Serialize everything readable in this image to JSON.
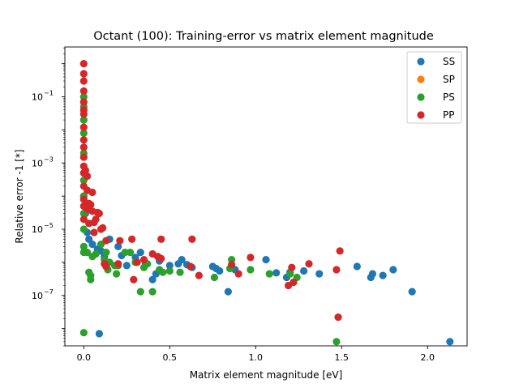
{
  "chart_data": {
    "type": "scatter",
    "title": "Octant (100): Training-error vs matrix element magnitude",
    "xlabel": "Matrix element magnitude [eV]",
    "ylabel": "Relative error -1 [*]",
    "xlim": [
      -0.11,
      2.23
    ],
    "ylim": [
      3e-09,
      3.2
    ],
    "yscale": "log",
    "x_ticks": [
      0.0,
      0.5,
      1.0,
      1.5,
      2.0
    ],
    "x_tick_labels": [
      "0.0",
      "0.5",
      "1.0",
      "1.5",
      "2.0"
    ],
    "y_ticks": [
      1e-07,
      1e-05,
      0.001,
      0.1
    ],
    "y_tick_labels": [
      {
        "base": "10",
        "exp": "−7"
      },
      {
        "base": "10",
        "exp": "−5"
      },
      {
        "base": "10",
        "exp": "−3"
      },
      {
        "base": "10",
        "exp": "−1"
      }
    ],
    "grid": false,
    "legend_position": "top-right",
    "series": [
      {
        "name": "SS",
        "color": "#1f77b4",
        "points": [
          [
            0.0,
            0.0001
          ],
          [
            0.01,
            3e-05
          ],
          [
            0.02,
            8e-06
          ],
          [
            0.03,
            5e-06
          ],
          [
            0.05,
            3.5e-06
          ],
          [
            0.08,
            2.5e-06
          ],
          [
            0.1,
            2.2e-06
          ],
          [
            0.12,
            1.5e-06
          ],
          [
            0.15,
            5e-06
          ],
          [
            0.2,
            3e-06
          ],
          [
            0.22,
            1.6e-06
          ],
          [
            0.25,
            8e-07
          ],
          [
            0.3,
            1.4e-06
          ],
          [
            0.33,
            2e-06
          ],
          [
            0.36,
            9e-07
          ],
          [
            0.4,
            3e-07
          ],
          [
            0.42,
            4.5e-07
          ],
          [
            0.44,
            1.1e-06
          ],
          [
            0.5,
            8e-07
          ],
          [
            0.55,
            9e-07
          ],
          [
            0.57,
            1.2e-06
          ],
          [
            0.6,
            8.5e-07
          ],
          [
            0.63,
            7e-07
          ],
          [
            0.75,
            7.5e-07
          ],
          [
            0.77,
            6.5e-07
          ],
          [
            0.79,
            5.5e-07
          ],
          [
            0.84,
            1.3e-07
          ],
          [
            0.88,
            6e-07
          ],
          [
            1.06,
            1.2e-06
          ],
          [
            1.12,
            4.8e-07
          ],
          [
            1.18,
            3.5e-07
          ],
          [
            1.2,
            5e-07
          ],
          [
            1.28,
            5.5e-07
          ],
          [
            1.37,
            4.5e-07
          ],
          [
            1.59,
            7.5e-07
          ],
          [
            1.67,
            3.5e-07
          ],
          [
            1.68,
            4.5e-07
          ],
          [
            1.74,
            4e-07
          ],
          [
            1.8,
            6e-07
          ],
          [
            1.91,
            1.3e-07
          ],
          [
            0.09,
            7e-09
          ],
          [
            2.13,
            4e-09
          ]
        ]
      },
      {
        "name": "SP",
        "color": "#ff7f0e",
        "points": []
      },
      {
        "name": "PS",
        "color": "#2ca02c",
        "points": [
          [
            0.0,
            7.5e-09
          ],
          [
            0.0,
            0.1
          ],
          [
            0.0,
            0.05
          ],
          [
            0.0,
            0.02
          ],
          [
            0.0,
            0.008
          ],
          [
            0.0,
            0.002
          ],
          [
            0.0,
            0.0003
          ],
          [
            0.0,
            0.0001
          ],
          [
            0.0,
            3e-05
          ],
          [
            0.0,
            1e-05
          ],
          [
            0.0,
            3e-06
          ],
          [
            0.0,
            2e-06
          ],
          [
            0.02,
            2e-06
          ],
          [
            0.03,
            5e-07
          ],
          [
            0.04,
            4e-07
          ],
          [
            0.04,
            3e-07
          ],
          [
            0.05,
            1.5e-06
          ],
          [
            0.07,
            1.8e-06
          ],
          [
            0.1,
            3.5e-06
          ],
          [
            0.12,
            1.2e-06
          ],
          [
            0.13,
            2e-06
          ],
          [
            0.14,
            6e-07
          ],
          [
            0.15,
            1e-06
          ],
          [
            0.18,
            8e-07
          ],
          [
            0.19,
            4.5e-07
          ],
          [
            0.2,
            8e-07
          ],
          [
            0.24,
            2e-06
          ],
          [
            0.27,
            2e-06
          ],
          [
            0.3,
            1e-06
          ],
          [
            0.33,
            1.3e-07
          ],
          [
            0.35,
            7e-07
          ],
          [
            0.37,
            9e-07
          ],
          [
            0.4,
            1.3e-07
          ],
          [
            0.44,
            6e-07
          ],
          [
            0.46,
            5e-07
          ],
          [
            0.5,
            5.5e-07
          ],
          [
            0.56,
            5e-07
          ],
          [
            0.76,
            3.5e-07
          ],
          [
            0.85,
            6.5e-07
          ],
          [
            0.86,
            1.2e-06
          ],
          [
            0.97,
            6e-07
          ],
          [
            1.08,
            4.5e-07
          ],
          [
            1.2,
            4.5e-07
          ],
          [
            1.24,
            3.5e-07
          ],
          [
            1.47,
            4e-09
          ]
        ]
      },
      {
        "name": "PP",
        "color": "#d62728",
        "points": [
          [
            0.0,
            1.0
          ],
          [
            0.0,
            0.5
          ],
          [
            0.0,
            0.3
          ],
          [
            0.0,
            0.15
          ],
          [
            0.0,
            0.07
          ],
          [
            0.0,
            0.04
          ],
          [
            0.0,
            0.03
          ],
          [
            0.0,
            0.012
          ],
          [
            0.0,
            0.005
          ],
          [
            0.0,
            0.003
          ],
          [
            0.0,
            0.0015
          ],
          [
            0.0,
            0.0008
          ],
          [
            0.0,
            0.0005
          ],
          [
            0.0,
            0.0002
          ],
          [
            0.0,
            8e-05
          ],
          [
            0.0,
            5e-05
          ],
          [
            0.0,
            2e-05
          ],
          [
            0.01,
            0.0006
          ],
          [
            0.02,
            0.0004
          ],
          [
            0.02,
            0.00015
          ],
          [
            0.02,
            4e-05
          ],
          [
            0.03,
            6e-05
          ],
          [
            0.03,
            1.5e-05
          ],
          [
            0.04,
            5.5e-05
          ],
          [
            0.05,
            3.5e-05
          ],
          [
            0.05,
            0.00013
          ],
          [
            0.06,
            1.6e-05
          ],
          [
            0.06,
            8e-06
          ],
          [
            0.07,
            2e-05
          ],
          [
            0.08,
            3.2e-05
          ],
          [
            0.09,
            3e-05
          ],
          [
            0.1,
            1e-05
          ],
          [
            0.11,
            1.1e-05
          ],
          [
            0.13,
            4.5e-06
          ],
          [
            0.12,
            9e-07
          ],
          [
            0.13,
            7.5e-07
          ],
          [
            0.2,
            9e-07
          ],
          [
            0.21,
            4.5e-06
          ],
          [
            0.28,
            5e-06
          ],
          [
            0.29,
            3e-07
          ],
          [
            0.31,
            1e-06
          ],
          [
            0.35,
            1.2e-06
          ],
          [
            0.4,
            1.8e-06
          ],
          [
            0.43,
            1.5e-06
          ],
          [
            0.45,
            1.3e-06
          ],
          [
            0.45,
            5e-06
          ],
          [
            0.62,
            7.5e-07
          ],
          [
            0.63,
            5e-06
          ],
          [
            0.67,
            4e-07
          ],
          [
            0.86,
            8.5e-07
          ],
          [
            0.9,
            4.5e-07
          ],
          [
            0.97,
            1.4e-06
          ],
          [
            1.19,
            2e-07
          ],
          [
            1.21,
            7e-07
          ],
          [
            1.22,
            2.5e-07
          ],
          [
            1.31,
            9e-07
          ],
          [
            1.47,
            6e-07
          ],
          [
            1.48,
            2.2e-08
          ],
          [
            1.49,
            2.2e-06
          ]
        ]
      }
    ]
  }
}
